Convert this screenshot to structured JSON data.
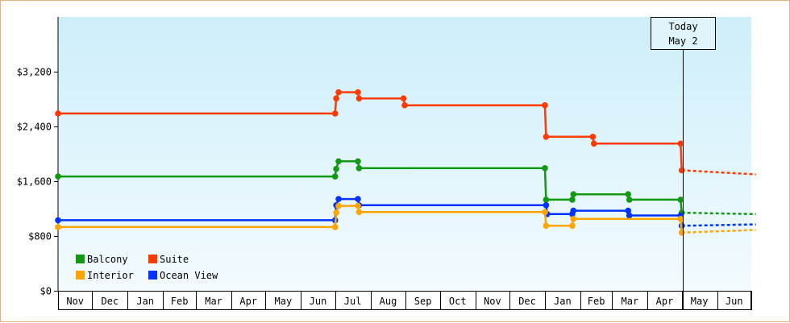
{
  "chart_data": {
    "type": "line",
    "step": true,
    "title": "",
    "xlabel": "",
    "ylabel": "",
    "x_range": [
      "2019-11-01",
      "2021-07-01"
    ],
    "ylim": [
      0,
      4000
    ],
    "yticks": [
      0,
      800,
      1600,
      2400,
      3200
    ],
    "ytick_labels": [
      "$0",
      "$800",
      "$1,600",
      "$2,400",
      "$3,200"
    ],
    "months": [
      {
        "start": "2019-11-01",
        "label": "Nov"
      },
      {
        "start": "2019-12-01",
        "label": "Dec"
      },
      {
        "start": "2020-01-01",
        "label": "Jan"
      },
      {
        "start": "2020-02-01",
        "label": "Feb"
      },
      {
        "start": "2020-03-01",
        "label": "Mar"
      },
      {
        "start": "2020-04-01",
        "label": "Apr"
      },
      {
        "start": "2020-05-01",
        "label": "May"
      },
      {
        "start": "2020-06-01",
        "label": "Jun"
      },
      {
        "start": "2020-07-01",
        "label": "Jul"
      },
      {
        "start": "2020-08-01",
        "label": "Aug"
      },
      {
        "start": "2020-09-01",
        "label": "Sep"
      },
      {
        "start": "2020-10-01",
        "label": "Oct"
      },
      {
        "start": "2020-11-01",
        "label": "Nov"
      },
      {
        "start": "2020-12-01",
        "label": "Dec"
      },
      {
        "start": "2021-01-01",
        "label": "Jan"
      },
      {
        "start": "2021-02-01",
        "label": "Feb"
      },
      {
        "start": "2021-03-01",
        "label": "Mar"
      },
      {
        "start": "2021-04-01",
        "label": "Apr"
      },
      {
        "start": "2021-05-01",
        "label": "May"
      },
      {
        "start": "2021-06-01",
        "label": "Jun"
      },
      {
        "start": "2021-07-01",
        "label": ""
      }
    ],
    "today": {
      "date": "2021-05-02",
      "label_line1": "Today",
      "label_line2": "May 2"
    },
    "legend": {
      "position": "bottom-left"
    },
    "grid": false,
    "background_gradient": [
      "#cdeefa",
      "#f3fbfe"
    ],
    "series": [
      {
        "name": "Suite",
        "color": "#ff3a00",
        "points": [
          [
            "2019-11-01",
            2590
          ],
          [
            "2020-07-01",
            2590
          ],
          [
            "2020-07-02",
            2810
          ],
          [
            "2020-07-04",
            2900
          ],
          [
            "2020-07-21",
            2900
          ],
          [
            "2020-07-22",
            2810
          ],
          [
            "2020-08-30",
            2810
          ],
          [
            "2020-08-31",
            2710
          ],
          [
            "2021-01-01",
            2710
          ],
          [
            "2021-01-02",
            2250
          ],
          [
            "2021-02-12",
            2250
          ],
          [
            "2021-02-13",
            2150
          ],
          [
            "2021-04-30",
            2150
          ],
          [
            "2021-05-01",
            1760
          ]
        ],
        "forecast": [
          [
            "2021-05-01",
            1760
          ],
          [
            "2021-07-05",
            1700
          ]
        ]
      },
      {
        "name": "Balcony",
        "color": "#119911",
        "points": [
          [
            "2019-11-01",
            1670
          ],
          [
            "2020-07-01",
            1670
          ],
          [
            "2020-07-02",
            1780
          ],
          [
            "2020-07-04",
            1890
          ],
          [
            "2020-07-21",
            1890
          ],
          [
            "2020-07-22",
            1790
          ],
          [
            "2021-01-01",
            1790
          ],
          [
            "2021-01-02",
            1330
          ],
          [
            "2021-01-25",
            1330
          ],
          [
            "2021-01-26",
            1410
          ],
          [
            "2021-03-15",
            1410
          ],
          [
            "2021-03-16",
            1330
          ],
          [
            "2021-04-30",
            1330
          ],
          [
            "2021-05-01",
            1140
          ]
        ],
        "forecast": [
          [
            "2021-05-01",
            1140
          ],
          [
            "2021-07-05",
            1120
          ]
        ]
      },
      {
        "name": "Ocean View",
        "color": "#0033ff",
        "points": [
          [
            "2019-11-01",
            1030
          ],
          [
            "2020-07-01",
            1030
          ],
          [
            "2020-07-02",
            1250
          ],
          [
            "2020-07-04",
            1340
          ],
          [
            "2020-07-21",
            1340
          ],
          [
            "2020-07-22",
            1250
          ],
          [
            "2021-01-01",
            1250
          ],
          [
            "2021-01-02",
            1250
          ],
          [
            "2021-01-03",
            1120
          ],
          [
            "2021-01-25",
            1120
          ],
          [
            "2021-01-26",
            1170
          ],
          [
            "2021-03-15",
            1170
          ],
          [
            "2021-03-16",
            1100
          ],
          [
            "2021-04-30",
            1100
          ],
          [
            "2021-05-01",
            950
          ]
        ],
        "forecast": [
          [
            "2021-05-01",
            950
          ],
          [
            "2021-07-05",
            970
          ]
        ]
      },
      {
        "name": "Interior",
        "color": "#ffa500",
        "points": [
          [
            "2019-11-01",
            930
          ],
          [
            "2020-07-01",
            930
          ],
          [
            "2020-07-02",
            1140
          ],
          [
            "2020-07-04",
            1240
          ],
          [
            "2020-07-21",
            1240
          ],
          [
            "2020-07-22",
            1150
          ],
          [
            "2021-01-01",
            1150
          ],
          [
            "2021-01-02",
            950
          ],
          [
            "2021-01-25",
            950
          ],
          [
            "2021-01-26",
            1050
          ],
          [
            "2021-04-30",
            1050
          ],
          [
            "2021-05-01",
            850
          ]
        ],
        "forecast": [
          [
            "2021-05-01",
            850
          ],
          [
            "2021-07-05",
            890
          ]
        ]
      }
    ]
  },
  "legend_items": [
    {
      "key": "balcony",
      "name": "Balcony",
      "color": "#119911"
    },
    {
      "key": "suite",
      "name": "Suite",
      "color": "#ff3a00"
    },
    {
      "key": "interior",
      "name": "Interior",
      "color": "#ffa500"
    },
    {
      "key": "ocean-view",
      "name": "Ocean View",
      "color": "#0033ff"
    }
  ]
}
